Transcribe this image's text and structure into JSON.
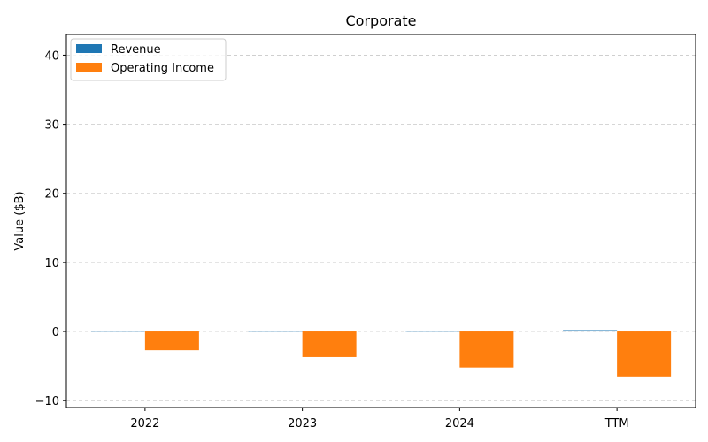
{
  "chart_data": {
    "type": "bar",
    "title": "Corporate",
    "xlabel": "",
    "ylabel": "Value ($B)",
    "categories": [
      "2022",
      "2023",
      "2024",
      "TTM"
    ],
    "series": [
      {
        "name": "Revenue",
        "color": "#1f77b4",
        "values": [
          0.1,
          0.1,
          0.1,
          0.2
        ]
      },
      {
        "name": "Operating Income",
        "color": "#ff7f0e",
        "values": [
          -2.7,
          -3.7,
          -5.2,
          -6.5
        ]
      }
    ],
    "ylim": [
      -11,
      43
    ],
    "yticks": [
      -10,
      0,
      10,
      20,
      30,
      40
    ],
    "ytick_labels": [
      "−10",
      "0",
      "10",
      "20",
      "30",
      "40"
    ],
    "grid": "y-dashed",
    "legend_position": "top-left"
  }
}
